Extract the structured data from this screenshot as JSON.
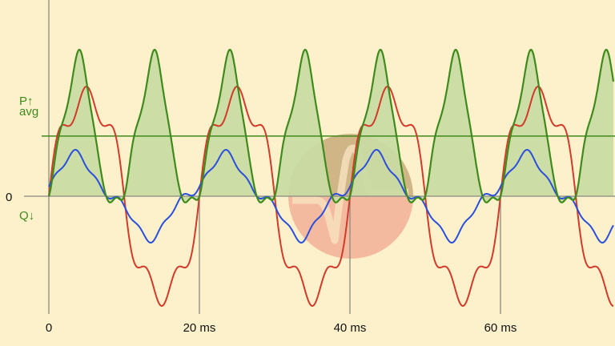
{
  "chart_data": {
    "type": "line",
    "title": "",
    "xlabel": "",
    "ylabel": "",
    "x_unit": "ms",
    "xlim": [
      0,
      75
    ],
    "x_ticks": [
      "0",
      "20 ms",
      "40 ms",
      "60 ms"
    ],
    "x_tick_values": [
      0,
      20,
      40,
      60
    ],
    "y_labels": {
      "zero": "0",
      "p_up": "P↑",
      "avg": "avg",
      "q_down": "Q↓"
    },
    "period_ms": 20,
    "grid": true,
    "series": [
      {
        "id": "voltage",
        "color": "#d23a2a",
        "harmonics": [
          {
            "order": 1,
            "amp": 1.0,
            "phase_deg": 0
          },
          {
            "order": 3,
            "amp": 0.1,
            "phase_deg": 0
          },
          {
            "order": 5,
            "amp": 0.15,
            "phase_deg": 0
          }
        ]
      },
      {
        "id": "current",
        "color": "#2a4fdc",
        "harmonics": [
          {
            "order": 1,
            "amp": 1.0,
            "phase_deg": 29
          },
          {
            "order": 3,
            "amp": 0.22,
            "phase_deg": 87
          },
          {
            "order": 7,
            "amp": 0.09,
            "phase_deg": 0
          }
        ]
      },
      {
        "id": "power",
        "color": "#3f8a1c",
        "fill": "#c9dba3",
        "derived": "voltage × current"
      }
    ],
    "average_line": {
      "series": "power",
      "color": "#3f8a1c"
    }
  },
  "colors": {
    "background": "#fdf1cb",
    "axis": "#8a8a80",
    "logo_top": "#c2a47a",
    "logo_bottom": "#f4b299"
  }
}
